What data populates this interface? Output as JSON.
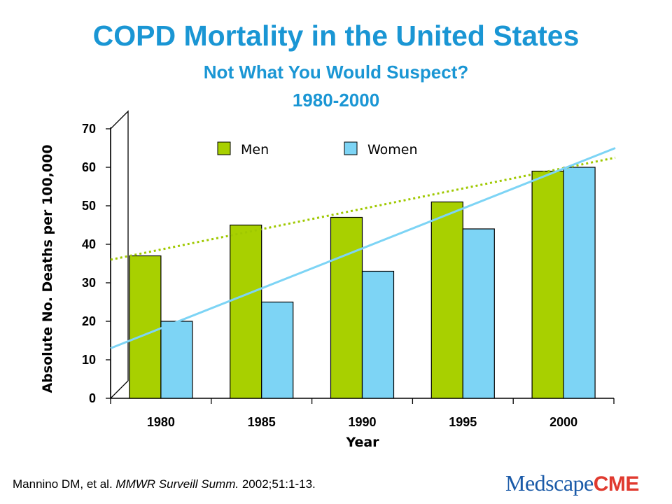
{
  "title": "COPD Mortality in the United States",
  "subtitle": "Not What You Would Suspect?",
  "years_label": "1980-2000",
  "citation": {
    "authors": "Mannino DM, et al.",
    "journal": "MMWR Surveill Summ.",
    "details": "2002;51:1-13."
  },
  "logo": {
    "part1": "Medscape",
    "part2": "CME"
  },
  "chart_data": {
    "type": "bar",
    "categories": [
      "1980",
      "1985",
      "1990",
      "1995",
      "2000"
    ],
    "series": [
      {
        "name": "Men",
        "values": [
          37,
          45,
          47,
          51,
          59
        ],
        "color": "#a8d000",
        "trend": {
          "start": 36,
          "end": 62.5,
          "style": "dotted"
        }
      },
      {
        "name": "Women",
        "values": [
          20,
          25,
          33,
          44,
          60
        ],
        "color": "#7dd4f5",
        "trend": {
          "start": 13,
          "end": 65,
          "style": "solid"
        }
      }
    ],
    "xlabel": "Year",
    "ylabel": "Absolute No. Deaths per 100,000",
    "ylim": [
      0,
      70
    ],
    "yticks": [
      "0",
      "10",
      "20",
      "30",
      "40",
      "50",
      "60",
      "70"
    ],
    "legend_position": "top",
    "grid": false
  }
}
